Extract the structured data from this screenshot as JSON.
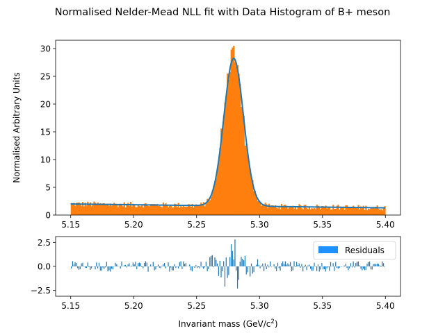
{
  "title": "Normalised Nelder-Mead NLL fit with Data Histogram of B+ meson",
  "colors": {
    "histogram": "#ff7f0e",
    "fit": "#1f77b4",
    "residual_bars": "#1f77b4",
    "legend_patch": "#1e90ff"
  },
  "chart_data": [
    {
      "type": "bar",
      "title": "Normalised Nelder-Mead NLL fit with Data Histogram of B+ meson",
      "ylabel": "Normalised Arbitrary Units",
      "xlim": [
        5.138,
        5.412
      ],
      "ylim": [
        0,
        31.5
      ],
      "xticks": [
        "5.15",
        "5.20",
        "5.25",
        "5.30",
        "5.35",
        "5.40"
      ],
      "yticks": [
        "0",
        "5",
        "10",
        "15",
        "20",
        "25",
        "30"
      ],
      "bins": {
        "start": 5.15,
        "end": 5.4,
        "count": 250
      },
      "background": {
        "level_at_start": 2.0,
        "level_at_end": 1.3
      },
      "peak": {
        "mean": 5.2795,
        "sigma": 0.0078,
        "height": 26.6
      },
      "histogram_peak_values": [
        {
          "x": 5.2695,
          "y": 15.6
        },
        {
          "x": 5.2745,
          "y": 25.5
        },
        {
          "x": 5.2775,
          "y": 29.8
        },
        {
          "x": 5.2785,
          "y": 30.2
        },
        {
          "x": 5.2795,
          "y": 30.5
        },
        {
          "x": 5.2815,
          "y": 26.8
        },
        {
          "x": 5.2855,
          "y": 19.5
        },
        {
          "x": 5.2885,
          "y": 12.5
        }
      ],
      "series": [
        {
          "kind": "histogram"
        },
        {
          "kind": "fit"
        }
      ]
    },
    {
      "type": "bar",
      "xlabel_main": "Invariant mass (GeV/c",
      "xlabel_sup": "2",
      "xlabel_end": ")",
      "xlim": [
        5.138,
        5.412
      ],
      "ylim": [
        -3.1,
        3.1
      ],
      "xticks": [
        "5.15",
        "5.20",
        "5.25",
        "5.30",
        "5.35",
        "5.40"
      ],
      "yticks": [
        "2.5",
        "0.0",
        "−2.5"
      ],
      "legend": {
        "label": "Residuals",
        "placement": "top-right"
      },
      "residual_notable": [
        {
          "x": 5.2725,
          "y": -2.1
        },
        {
          "x": 5.2745,
          "y": -1.2
        },
        {
          "x": 5.2775,
          "y": 2.3
        },
        {
          "x": 5.2785,
          "y": 1.6
        },
        {
          "x": 5.2805,
          "y": 2.8
        },
        {
          "x": 5.2825,
          "y": -2.3
        },
        {
          "x": 5.2835,
          "y": -1.4
        },
        {
          "x": 5.2855,
          "y": 1.0
        },
        {
          "x": 5.2885,
          "y": 1.1
        }
      ]
    }
  ]
}
